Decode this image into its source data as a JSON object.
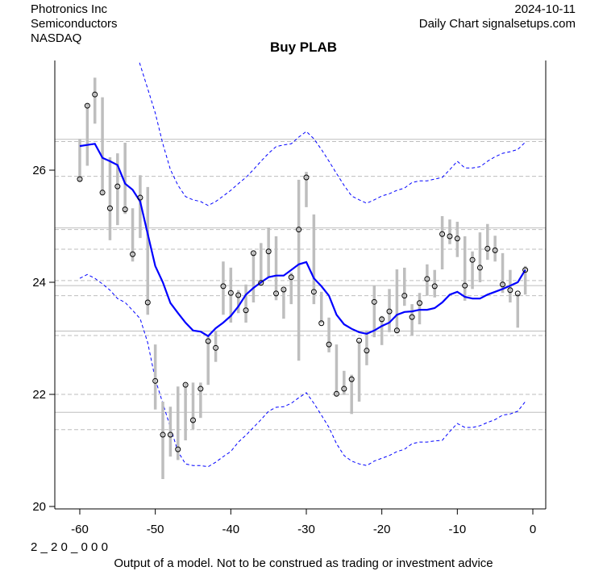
{
  "header": {
    "company": "Photronics Inc",
    "sector": "Semiconductors",
    "exchange": "NASDAQ",
    "date": "2024-10-11",
    "source": "Daily Chart signalsetups.com"
  },
  "footer": {
    "code": "2 _ 2 0 _ 0 0 0",
    "disclaimer": "Output of a model. Not to be construed as trading or investment advice"
  },
  "chart_data": {
    "type": "line",
    "title": "Buy PLAB",
    "xlabel": "",
    "ylabel": "",
    "xlim": [
      -63,
      1.5
    ],
    "ylim": [
      19.95,
      28.0
    ],
    "xticks": [
      -60,
      -50,
      -40,
      -30,
      -20,
      -10,
      0
    ],
    "yticks": [
      20,
      22,
      24,
      26
    ],
    "grid": false,
    "colors": {
      "ohlc_bar": "#bebebe",
      "moving_average": "#0000ff",
      "bands": "#0000ff",
      "levels": "#bebebe"
    },
    "x": [
      -60,
      -59,
      -58,
      -57,
      -56,
      -55,
      -54,
      -53,
      -52,
      -51,
      -50,
      -49,
      -48,
      -47,
      -46,
      -45,
      -44,
      -43,
      -42,
      -41,
      -40,
      -39,
      -38,
      -37,
      -36,
      -35,
      -34,
      -33,
      -32,
      -31,
      -30,
      -29,
      -28,
      -27,
      -26,
      -25,
      -24,
      -23,
      -22,
      -21,
      -20,
      -19,
      -18,
      -17,
      -16,
      -15,
      -14,
      -13,
      -12,
      -11,
      -10,
      -9,
      -8,
      -7,
      -6,
      -5,
      -4,
      -3,
      -2,
      -1
    ],
    "close": [
      25.84,
      27.15,
      27.35,
      25.6,
      25.32,
      25.71,
      25.3,
      24.5,
      25.51,
      23.64,
      22.24,
      21.28,
      21.28,
      21.02,
      22.17,
      21.54,
      22.1,
      22.95,
      22.83,
      23.93,
      23.81,
      23.77,
      23.5,
      24.52,
      23.99,
      24.55,
      23.8,
      23.87,
      24.09,
      24.94,
      25.87,
      23.83,
      23.27,
      22.89,
      22.01,
      22.1,
      22.27,
      22.96,
      22.78,
      23.65,
      23.34,
      23.48,
      23.14,
      23.76,
      23.38,
      23.63,
      24.06,
      23.93,
      24.86,
      24.82,
      24.78,
      23.94,
      24.4,
      24.26,
      24.6,
      24.57,
      23.96,
      23.86,
      23.8,
      24.22
    ],
    "high": [
      26.56,
      27.19,
      27.65,
      27.3,
      26.23,
      26.3,
      26.49,
      25.32,
      25.91,
      25.7,
      22.89,
      21.87,
      21.78,
      22.14,
      22.2,
      22.21,
      22.21,
      23.04,
      23.12,
      24.37,
      24.26,
      23.86,
      23.96,
      24.55,
      24.7,
      24.98,
      24.82,
      23.9,
      24.17,
      25.83,
      25.97,
      25.21,
      23.83,
      23.37,
      22.89,
      22.42,
      22.35,
      22.96,
      23.14,
      23.94,
      23.4,
      23.88,
      24.23,
      24.26,
      23.61,
      23.81,
      24.32,
      24.22,
      25.18,
      25.12,
      25.08,
      24.82,
      24.55,
      24.89,
      25.04,
      24.83,
      24.52,
      24.22,
      23.8,
      24.29
    ],
    "low": [
      25.8,
      26.08,
      26.83,
      25.55,
      24.75,
      25.02,
      25.22,
      24.37,
      24.79,
      23.42,
      21.73,
      20.49,
      20.89,
      20.83,
      21.18,
      21.38,
      21.58,
      22.17,
      22.58,
      23.42,
      23.28,
      23.45,
      23.28,
      23.64,
      23.96,
      24.1,
      23.68,
      23.35,
      23.61,
      22.6,
      25.34,
      23.61,
      23.27,
      22.75,
      21.96,
      21.99,
      21.65,
      21.87,
      22.52,
      23.02,
      22.88,
      23.11,
      23.09,
      23.58,
      23.05,
      23.25,
      23.76,
      23.73,
      24.23,
      24.68,
      24.45,
      23.67,
      23.88,
      24.0,
      24.4,
      24.37,
      23.81,
      23.64,
      23.19,
      23.78
    ],
    "moving_average": [
      26.43,
      26.45,
      26.47,
      26.22,
      26.16,
      26.09,
      25.76,
      25.65,
      25.44,
      24.86,
      24.29,
      24.0,
      23.63,
      23.45,
      23.28,
      23.14,
      23.12,
      23.04,
      23.18,
      23.28,
      23.4,
      23.57,
      23.78,
      23.9,
      24.0,
      24.09,
      24.12,
      24.12,
      24.22,
      24.32,
      24.36,
      24.07,
      23.93,
      23.76,
      23.42,
      23.25,
      23.17,
      23.11,
      23.08,
      23.14,
      23.22,
      23.28,
      23.42,
      23.47,
      23.48,
      23.51,
      23.51,
      23.54,
      23.64,
      23.78,
      23.83,
      23.74,
      23.71,
      23.71,
      23.78,
      23.83,
      23.88,
      23.94,
      24.0,
      24.22
    ],
    "upper_band": [
      null,
      null,
      null,
      null,
      null,
      null,
      null,
      28.3,
      27.88,
      27.45,
      27.02,
      26.47,
      26.01,
      25.73,
      25.53,
      25.47,
      25.44,
      25.37,
      25.44,
      25.54,
      25.64,
      25.76,
      25.87,
      26.01,
      26.16,
      26.3,
      26.42,
      26.45,
      26.47,
      26.59,
      26.69,
      26.56,
      26.37,
      26.16,
      25.94,
      25.73,
      25.54,
      25.47,
      25.41,
      25.47,
      25.54,
      25.58,
      25.64,
      25.68,
      25.78,
      25.81,
      25.81,
      25.84,
      25.87,
      26.01,
      26.16,
      26.04,
      26.04,
      26.06,
      26.16,
      26.24,
      26.3,
      26.33,
      26.37,
      26.5
    ],
    "lower_band": [
      24.07,
      24.14,
      24.07,
      23.97,
      23.86,
      23.71,
      23.64,
      23.5,
      23.35,
      22.92,
      22.27,
      21.84,
      21.41,
      20.98,
      20.76,
      20.73,
      20.73,
      20.71,
      20.79,
      20.89,
      20.98,
      21.15,
      21.27,
      21.41,
      21.55,
      21.7,
      21.77,
      21.78,
      21.84,
      21.94,
      22.03,
      21.84,
      21.63,
      21.41,
      21.12,
      20.91,
      20.81,
      20.76,
      20.73,
      20.81,
      20.86,
      20.91,
      20.98,
      21.02,
      21.12,
      21.15,
      21.15,
      21.17,
      21.18,
      21.34,
      21.48,
      21.41,
      21.41,
      21.44,
      21.5,
      21.55,
      21.63,
      21.65,
      21.7,
      21.87
    ],
    "solid_levels": [
      26.55,
      24.97,
      23.94,
      23.13,
      21.68
    ],
    "dashed_levels": [
      26.51,
      25.89,
      24.94,
      24.59,
      24.03,
      23.76,
      23.05,
      22.0,
      21.37
    ]
  }
}
